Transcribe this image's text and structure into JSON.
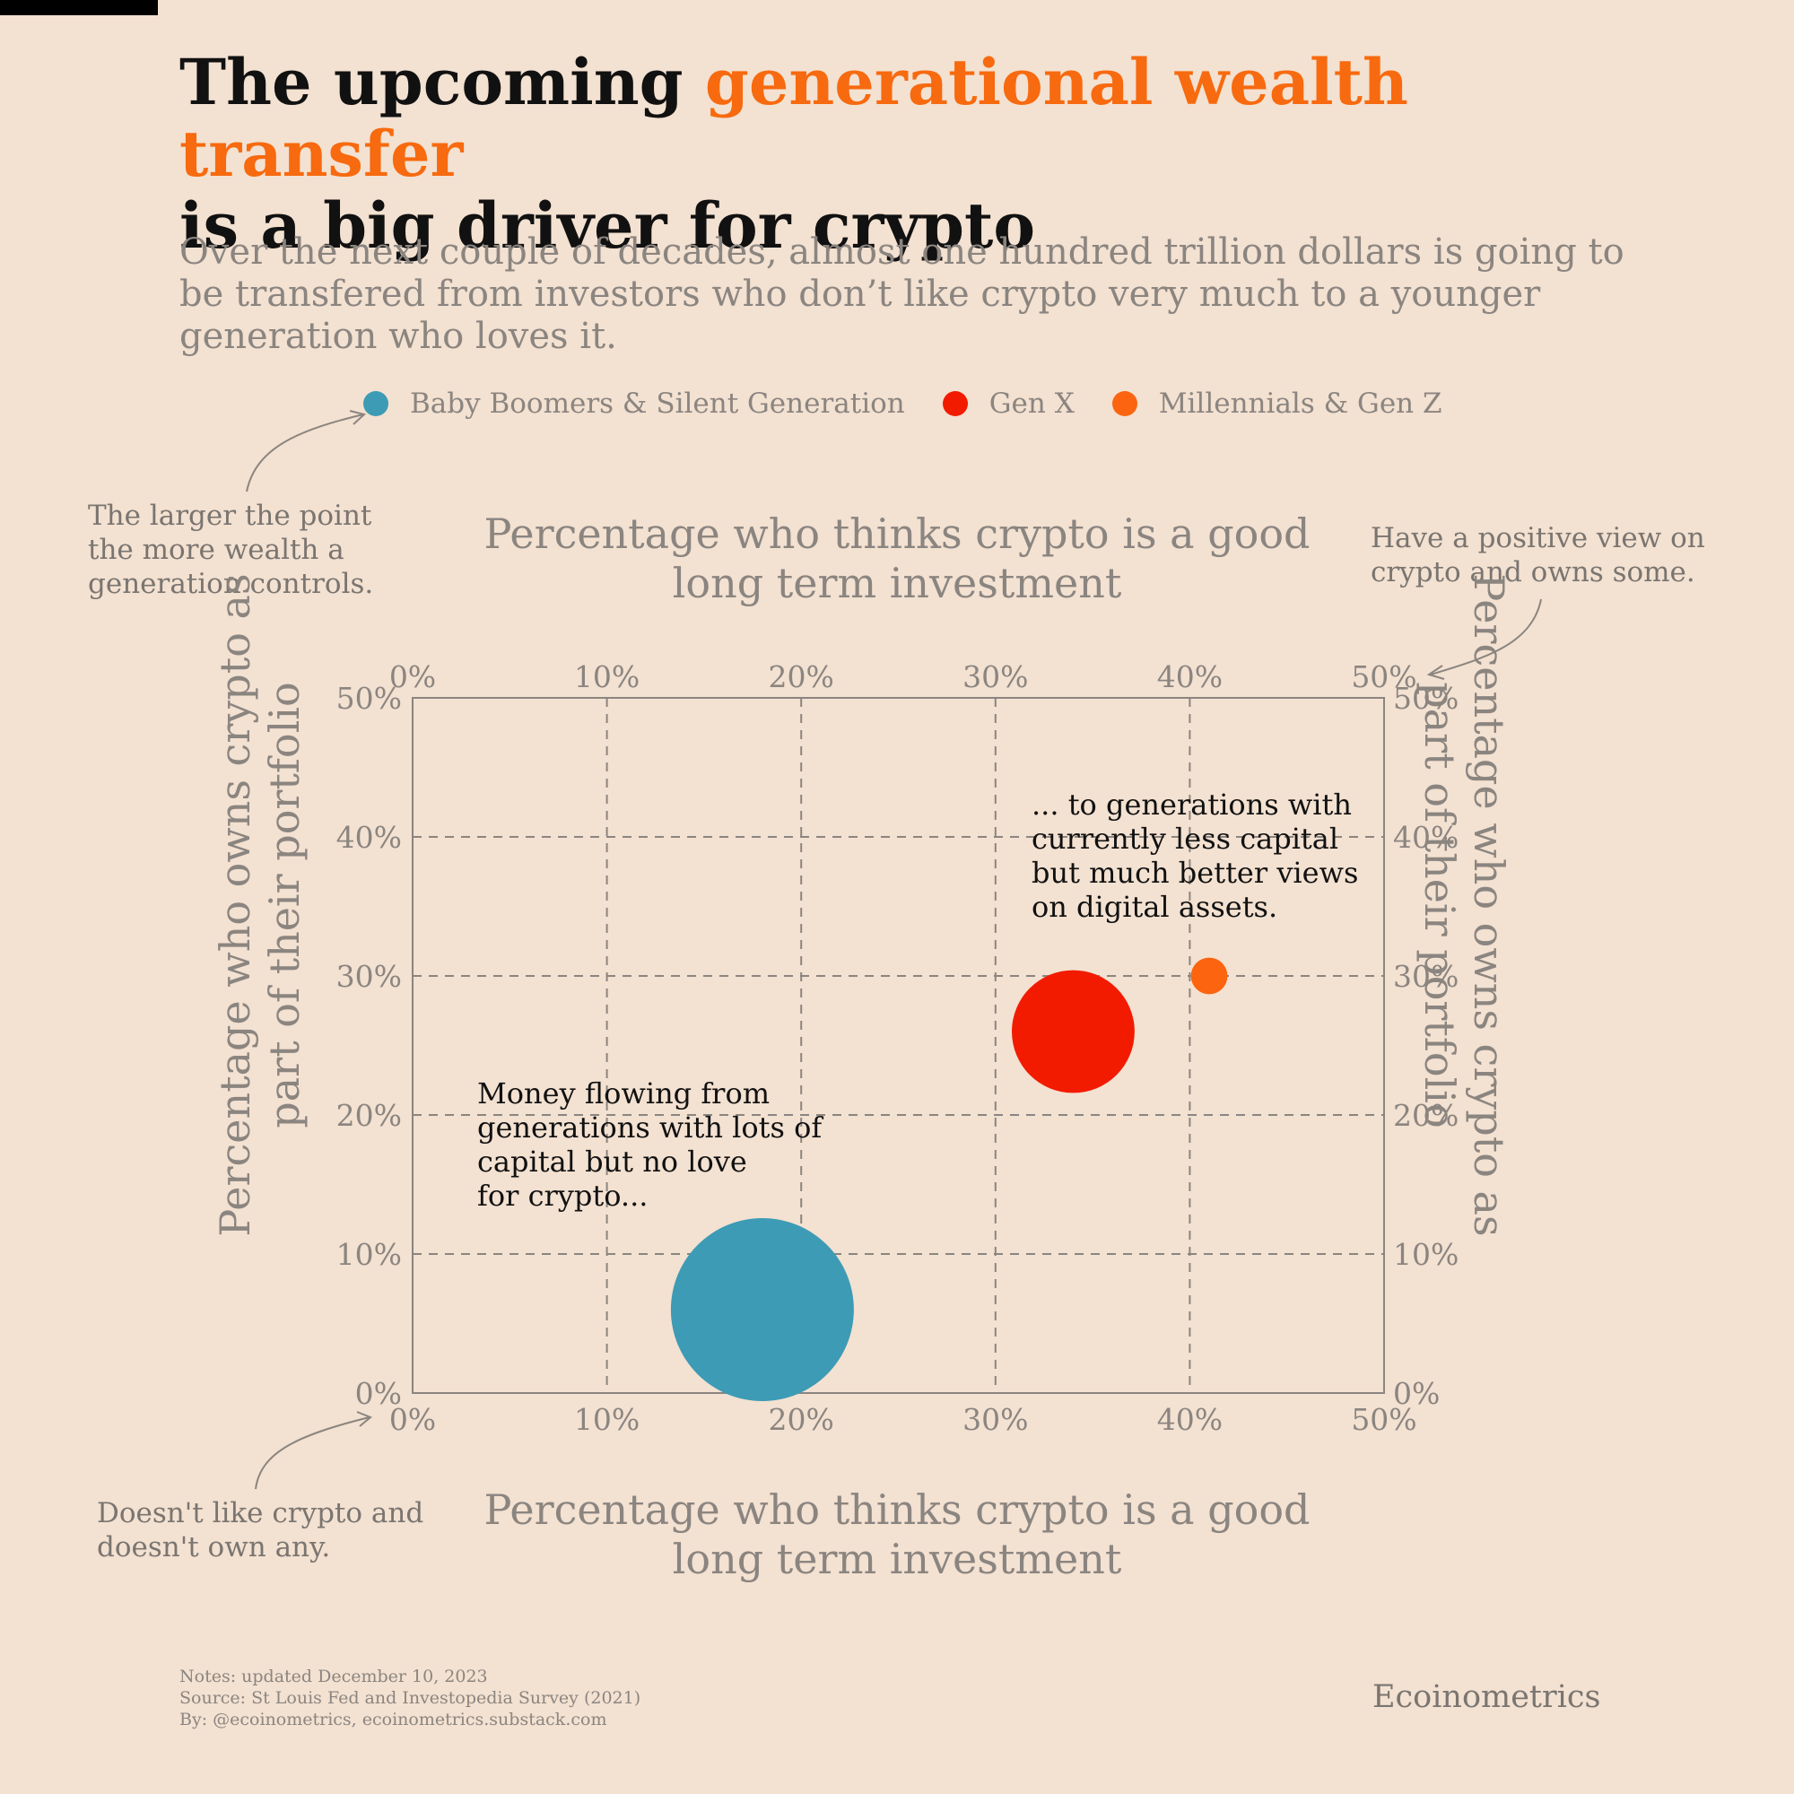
{
  "header": {
    "title_part1": "The upcoming ",
    "title_highlight": "generational wealth transfer",
    "title_part2": "is a big driver for crypto",
    "subtitle": "Over the next couple of decades, almost one hundred trillion dollars is going to be transfered from investors who don’t like crypto very much to a younger generation who loves it."
  },
  "colors": {
    "background": "#f3e1d1",
    "highlight": "#f76a0f",
    "boomers": "#3d9bb5",
    "genx": "#f21b00",
    "millennials": "#fc6410",
    "grid": "#8b8580"
  },
  "notes": {
    "size_note": "The larger the point the more wealth a generation controls.",
    "top_right_note": "Have a positive view on crypto and owns some.",
    "bottom_left_note": "Doesn't like crypto and doesn't own any."
  },
  "chart_data": {
    "type": "scatter",
    "xlabel": "Percentage who thinks crypto is a good long term investment",
    "ylabel": "Percentage who owns crypto as part of their portfolio",
    "xlim": [
      0,
      50
    ],
    "ylim": [
      0,
      50
    ],
    "ticks": [
      0,
      10,
      20,
      30,
      40,
      50
    ],
    "tick_suffix": "%",
    "grid": true,
    "legend_position": "top",
    "series": [
      {
        "name": "Baby Boomers & Silent Generation",
        "x": 18,
        "y": 6,
        "size": 100,
        "color": "#3d9bb5"
      },
      {
        "name": "Gen X",
        "x": 34,
        "y": 26,
        "size": 45,
        "color": "#f21b00"
      },
      {
        "name": "Millennials & Gen Z",
        "x": 41,
        "y": 30,
        "size": 4,
        "color": "#fc6410"
      }
    ],
    "annotations": [
      {
        "text": "... to generations with currently less capital but much better views on digital assets."
      },
      {
        "text": "Money flowing from generations with lots of capital but no love for crypto..."
      }
    ]
  },
  "footer": {
    "notes": "Notes: updated December 10, 2023",
    "source": "Source: St Louis Fed and Investopedia Survey (2021)",
    "by": "By: @ecoinometrics, ecoinometrics.substack.com",
    "brand": "Ecoinometrics"
  }
}
